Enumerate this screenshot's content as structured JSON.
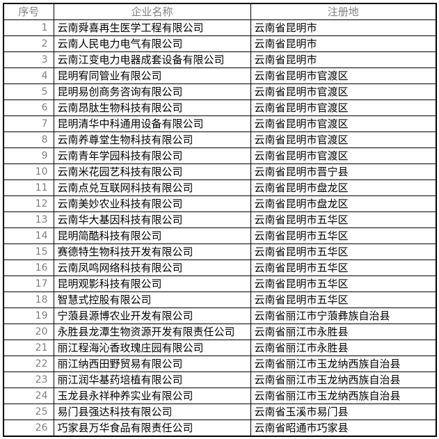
{
  "colors": {
    "background": "#ffffff",
    "border": "#000000",
    "header_text": "#808080",
    "index_text": "#808080",
    "body_text": "#000000"
  },
  "table": {
    "columns": [
      {
        "key": "index",
        "label": "序号"
      },
      {
        "key": "name",
        "label": "企业名称"
      },
      {
        "key": "location",
        "label": "注册地"
      }
    ],
    "rows": [
      {
        "index": "1",
        "name": "云南舜喜再生医学工程有限公司",
        "location": "云南省昆明市"
      },
      {
        "index": "2",
        "name": "云南人民电力电气有限公司",
        "location": "云南省昆明市"
      },
      {
        "index": "3",
        "name": "云南江变电力电器成套设备有限公司",
        "location": "云南省昆明市"
      },
      {
        "index": "4",
        "name": "昆明宥同管业有限公司",
        "location": "云南省昆明市官渡区"
      },
      {
        "index": "5",
        "name": "昆明易创商务咨询有限公司",
        "location": "云南省昆明市官渡区"
      },
      {
        "index": "6",
        "name": "云南昂肽生物科技有限公司",
        "location": "云南省昆明市官渡区"
      },
      {
        "index": "7",
        "name": "昆明清华中科通用设备有限公司",
        "location": "云南省昆明市官渡区"
      },
      {
        "index": "8",
        "name": "云南养尊堂生物科技有限公司",
        "location": "云南省昆明市官渡区"
      },
      {
        "index": "9",
        "name": "云南青年学园科技有限公司",
        "location": "云南省昆明市官渡区"
      },
      {
        "index": "10",
        "name": "云南米花园艺科技有限公司",
        "location": "云南省昆明市晋宁县"
      },
      {
        "index": "11",
        "name": "云南点兑互联网科技有限公司",
        "location": "云南省昆明市盘龙区"
      },
      {
        "index": "12",
        "name": "云南美妙农业科技有限公司",
        "location": "云南省昆明市盘龙区"
      },
      {
        "index": "13",
        "name": "云南华大基因科技有限公司",
        "location": "云南省昆明市五华区"
      },
      {
        "index": "14",
        "name": "昆明简酷科技有限公司",
        "location": "云南省昆明市五华区"
      },
      {
        "index": "15",
        "name": "赛德特生物科技开发有限公司",
        "location": "云南省昆明市五华区"
      },
      {
        "index": "16",
        "name": "云南凤鸣网络科技有限公司",
        "location": "云南省昆明市五华区"
      },
      {
        "index": "17",
        "name": "昆明观影科技有限公司",
        "location": "云南省昆明市五华区"
      },
      {
        "index": "18",
        "name": "智慧式控股有限公司",
        "location": "云南省昆明市五华区"
      },
      {
        "index": "19",
        "name": "宁蒗县源博农业开发有限公司",
        "location": "云南省丽江市宁蒗彝族自治县"
      },
      {
        "index": "20",
        "name": "永胜县龙潭生物资源开发有限责任公司",
        "location": "云南省丽江市永胜县"
      },
      {
        "index": "21",
        "name": "丽江程海沁香玫瑰庄园有限公司",
        "location": "云南省丽江市永胜县"
      },
      {
        "index": "22",
        "name": "丽江纳西田野贸易有限公司",
        "location": "云南省丽江市玉龙纳西族自治县"
      },
      {
        "index": "23",
        "name": "丽江润华基药培植有限公司",
        "location": "云南省丽江市玉龙纳西族自治县"
      },
      {
        "index": "24",
        "name": "玉龙县永祥种养实业有限公司",
        "location": "云南省丽江市玉龙纳西族自治县"
      },
      {
        "index": "25",
        "name": "易门县强达科技有限公司",
        "location": "云南省玉溪市易门县"
      },
      {
        "index": "26",
        "name": "巧家县万华食品有限责任公司",
        "location": "云南省昭通市巧家县"
      }
    ]
  }
}
